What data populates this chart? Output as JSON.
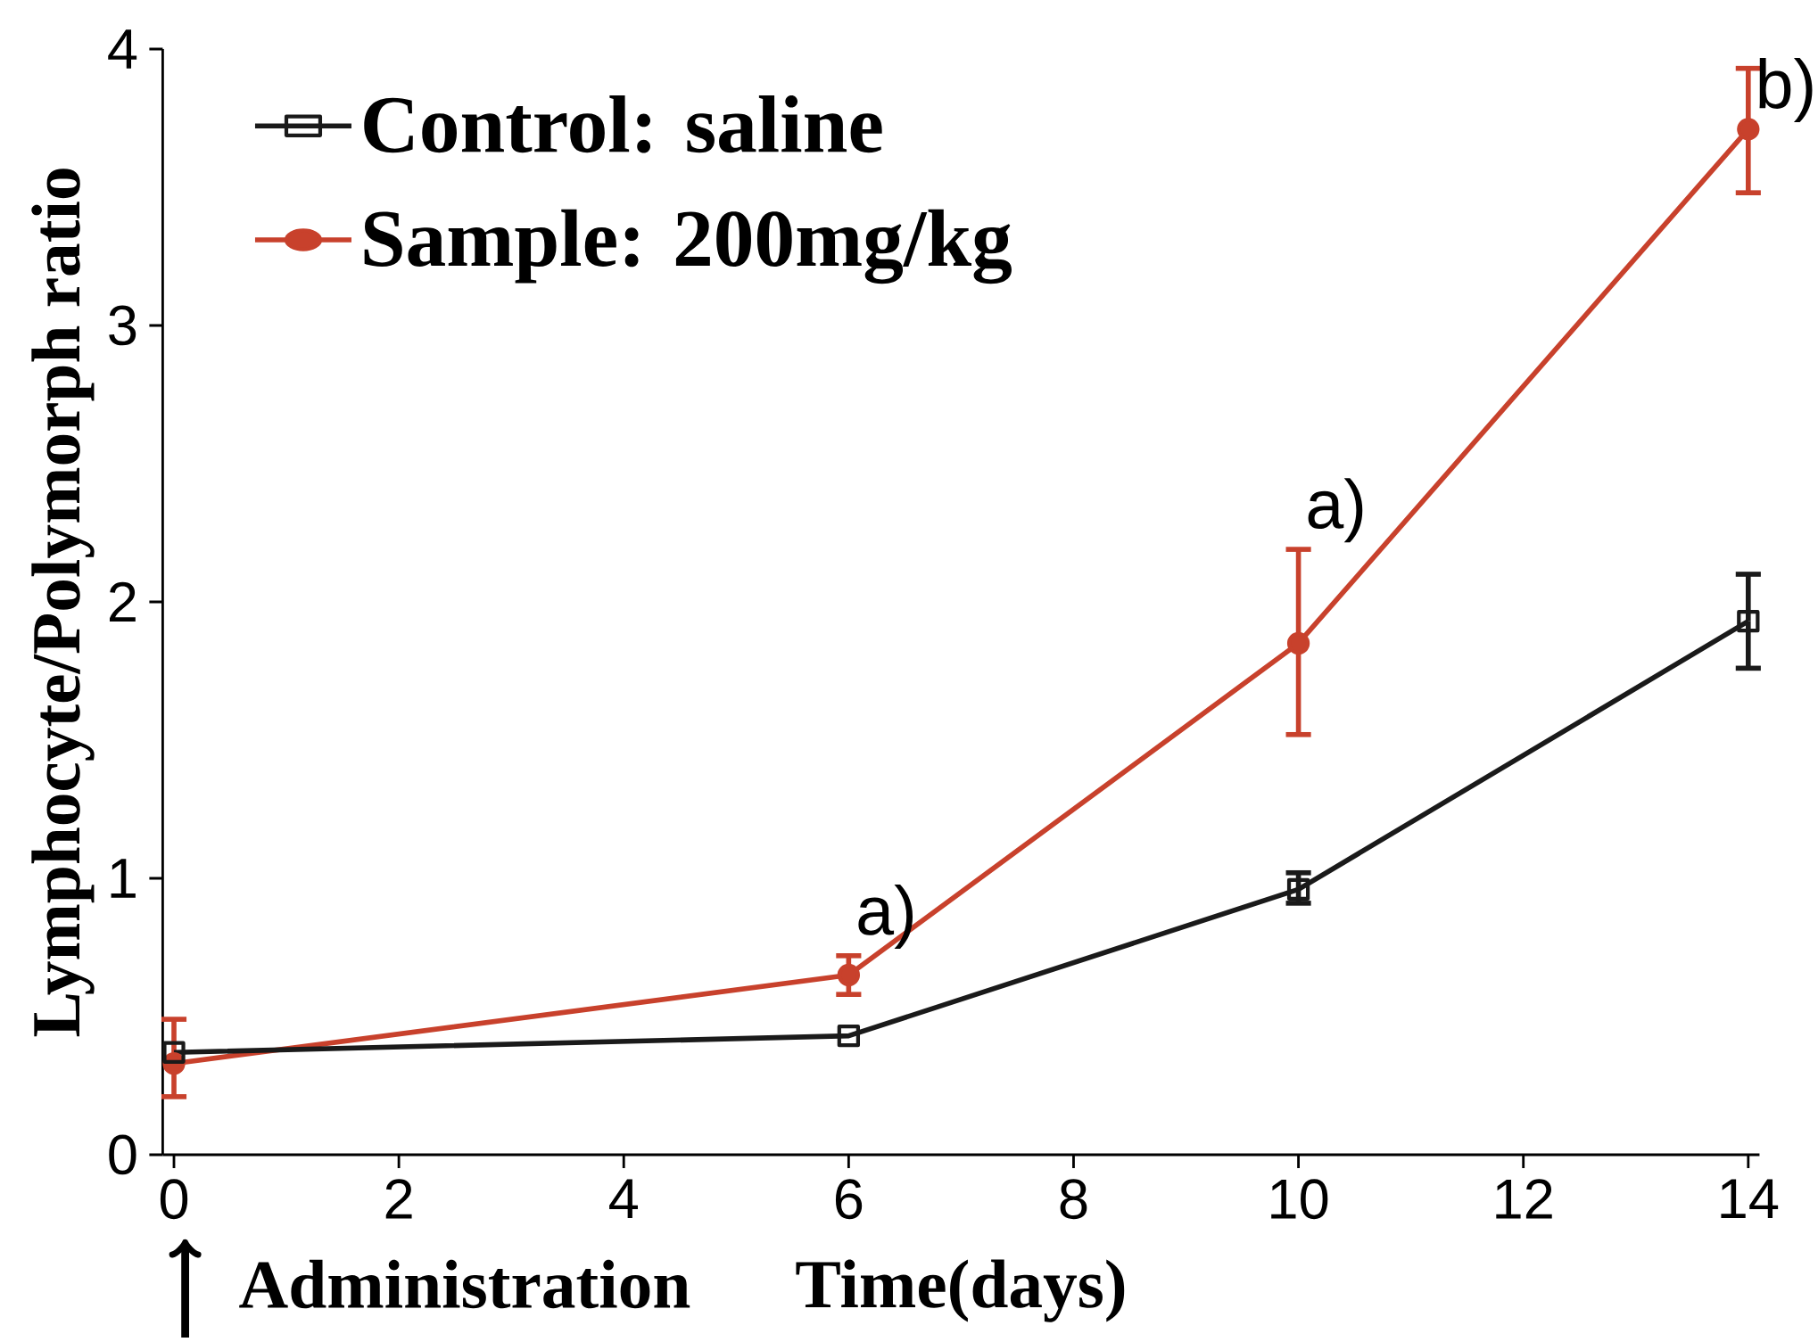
{
  "chart_data": {
    "type": "line",
    "xlabel": "Time(days)",
    "ylabel": "Lymphocyte/Polymorph ratio",
    "x": [
      0,
      6,
      10,
      14
    ],
    "series": [
      {
        "name": "Control: saline",
        "color": "#1a1a1a",
        "marker": "square",
        "values": [
          0.37,
          0.43,
          0.96,
          1.93
        ],
        "errors": [
          null,
          null,
          [
            0.91,
            1.02
          ],
          [
            1.76,
            2.1
          ]
        ]
      },
      {
        "name": "Sample: 200mg/kg",
        "color": "#c8412c",
        "marker": "circle",
        "values": [
          0.33,
          0.65,
          1.85,
          3.71
        ],
        "errors": [
          [
            0.21,
            0.49
          ],
          [
            0.58,
            0.72
          ],
          [
            1.52,
            2.19
          ],
          [
            3.48,
            3.93
          ]
        ]
      }
    ],
    "xlim": [
      -0.1,
      14.1
    ],
    "ylim": [
      0,
      4
    ],
    "xticks": [
      0,
      2,
      4,
      6,
      8,
      10,
      12,
      14
    ],
    "yticks": [
      0,
      1,
      2,
      3,
      4
    ],
    "legend": "top left",
    "line_style": "solid",
    "annotations": [
      {
        "text": "a)",
        "x": 6,
        "y": 0.72
      },
      {
        "text": "a)",
        "x": 10,
        "y": 2.19
      },
      {
        "text": "b)",
        "x": 14,
        "y": 3.71
      },
      "Administration"
    ]
  }
}
